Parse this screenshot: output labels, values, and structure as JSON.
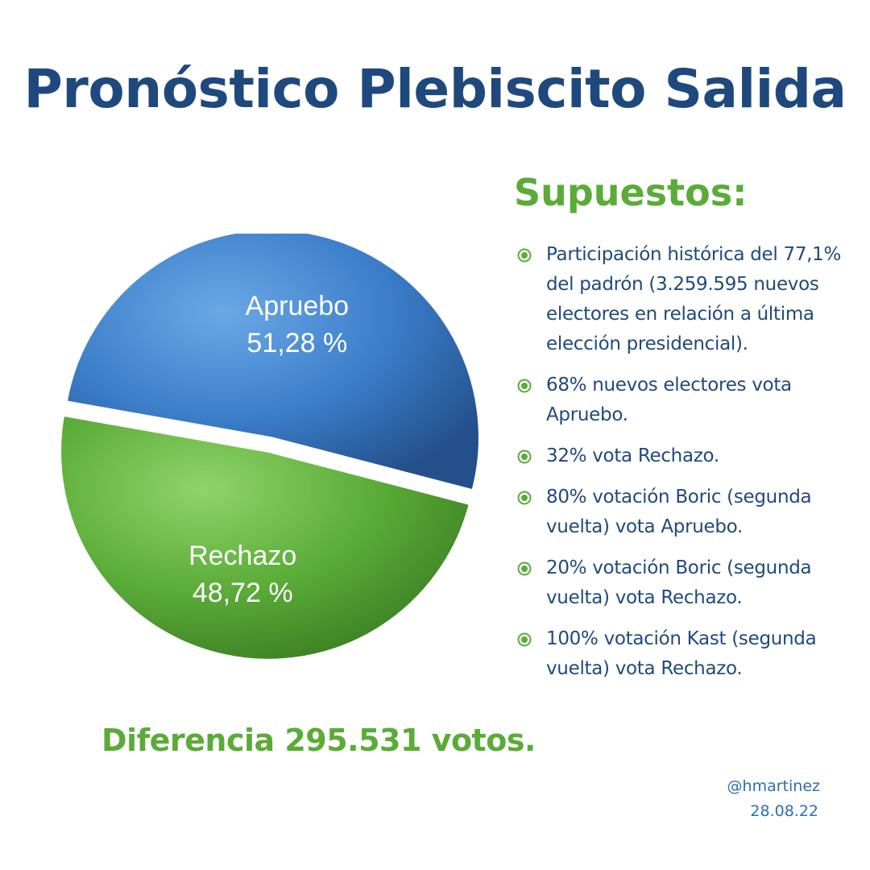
{
  "header": {
    "title": "Pronóstico Plebiscito Salida"
  },
  "chart_data": {
    "type": "pie",
    "series": [
      {
        "name": "Apruebo",
        "value": 51.28,
        "label": "51,28 %",
        "color": "#3b7dc9"
      },
      {
        "name": "Rechazo",
        "value": 48.72,
        "label": "48,72 %",
        "color": "#5aab37"
      }
    ]
  },
  "assumptions": {
    "heading": "Supuestos:",
    "bullet_color": "#5aab37",
    "items": [
      "Participación histórica del 77,1% del padrón (3.259.595 nuevos electores en relación a última elección presidencial).",
      "68% nuevos electores vota Apruebo.",
      "32% vota Rechazo.",
      "80% votación Boric (segunda vuelta) vota Apruebo.",
      "20% votación Boric (segunda vuelta) vota Rechazo.",
      "100% votación Kast (segunda vuelta) vota Rechazo."
    ]
  },
  "footer": {
    "difference": "Diferencia 295.531 votos.",
    "handle": "@hmartinez",
    "date": "28.08.22"
  }
}
